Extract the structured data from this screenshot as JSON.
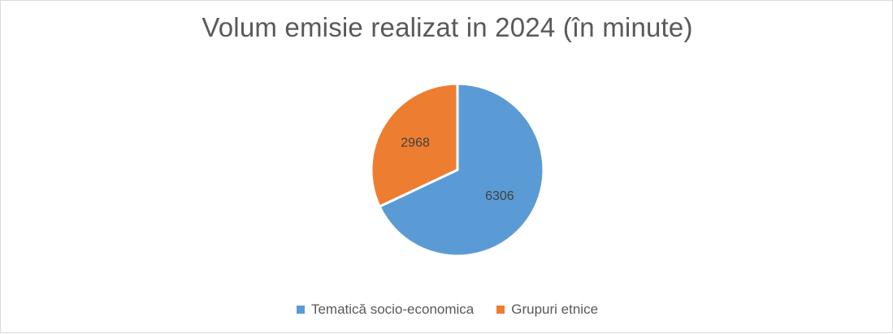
{
  "chart_data": {
    "type": "pie",
    "title": "Volum emisie realizat in 2024 (în minute)",
    "categories": [
      "Tematică socio-economica",
      "Grupuri etnice"
    ],
    "values": [
      6306,
      2968
    ],
    "data_labels": [
      "6306",
      "2968"
    ],
    "colors": [
      "#5b9bd5",
      "#ed7d31"
    ],
    "legend_position": "bottom"
  }
}
